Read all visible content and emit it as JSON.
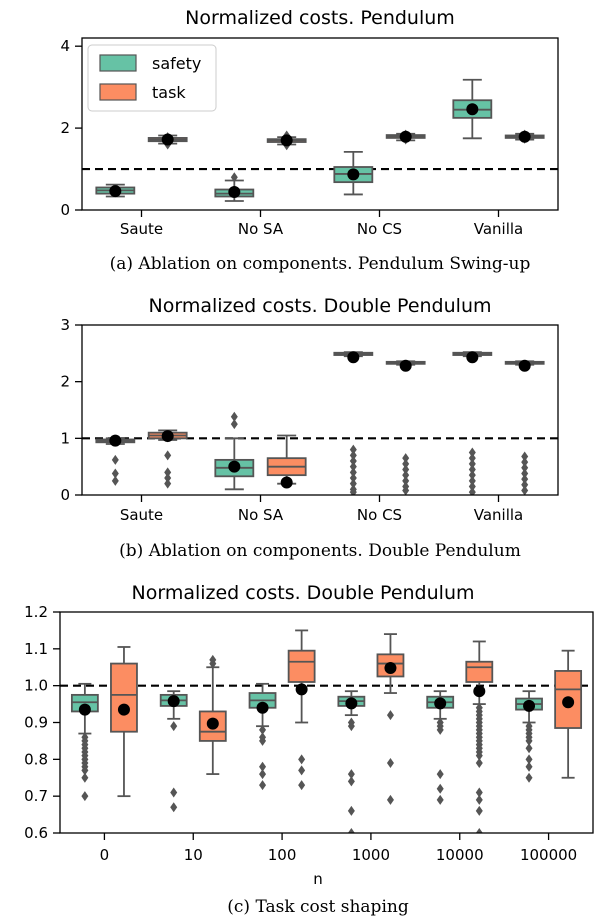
{
  "colors": {
    "safety": "#66c2a5",
    "task": "#fc8d62",
    "line": "#555555",
    "mean": "#000000"
  },
  "chart_data": [
    {
      "type": "box",
      "title": "Normalized costs. Pendulum",
      "caption": "(a) Ablation on components. Pendulum Swing-up",
      "categories": [
        "Saute",
        "No SA",
        "No CS",
        "Vanilla"
      ],
      "ylim": [
        0,
        4.2
      ],
      "yticks": [
        "0",
        "2",
        "4"
      ],
      "reference_line": 1.0,
      "legend": {
        "placement": "top-left",
        "entries": [
          "safety",
          "task"
        ]
      },
      "series": [
        {
          "name": "safety",
          "color": "#66c2a5",
          "boxes": [
            {
              "q1": 0.4,
              "med": 0.48,
              "q3": 0.55,
              "lo": 0.33,
              "hi": 0.62,
              "mean": 0.46,
              "out": []
            },
            {
              "q1": 0.33,
              "med": 0.4,
              "q3": 0.5,
              "lo": 0.22,
              "hi": 0.72,
              "mean": 0.44,
              "out": [
                0.8
              ]
            },
            {
              "q1": 0.68,
              "med": 0.88,
              "q3": 1.05,
              "lo": 0.38,
              "hi": 1.42,
              "mean": 0.87,
              "out": []
            },
            {
              "q1": 2.25,
              "med": 2.45,
              "q3": 2.68,
              "lo": 1.75,
              "hi": 3.18,
              "mean": 2.46,
              "out": []
            }
          ]
        },
        {
          "name": "task",
          "color": "#fc8d62",
          "boxes": [
            {
              "q1": 1.68,
              "med": 1.72,
              "q3": 1.76,
              "lo": 1.62,
              "hi": 1.82,
              "mean": 1.72,
              "out": [
                1.6,
                1.66,
                1.78
              ]
            },
            {
              "q1": 1.66,
              "med": 1.7,
              "q3": 1.73,
              "lo": 1.6,
              "hi": 1.78,
              "mean": 1.7,
              "out": [
                1.58,
                1.82
              ]
            },
            {
              "q1": 1.76,
              "med": 1.8,
              "q3": 1.83,
              "lo": 1.7,
              "hi": 1.86,
              "mean": 1.79,
              "out": [
                1.72,
                1.84
              ]
            },
            {
              "q1": 1.76,
              "med": 1.79,
              "q3": 1.82,
              "lo": 1.72,
              "hi": 1.86,
              "mean": 1.79,
              "out": [
                1.74,
                1.84
              ]
            }
          ]
        }
      ]
    },
    {
      "type": "box",
      "title": "Normalized costs. Double Pendulum",
      "caption": "(b) Ablation on components. Double Pendulum",
      "categories": [
        "Saute",
        "No SA",
        "No CS",
        "Vanilla"
      ],
      "ylim": [
        0,
        3
      ],
      "yticks": [
        "0",
        "1",
        "2",
        "3"
      ],
      "reference_line": 1.0,
      "series": [
        {
          "name": "safety",
          "color": "#66c2a5",
          "boxes": [
            {
              "q1": 0.93,
              "med": 0.96,
              "q3": 0.98,
              "lo": 0.9,
              "hi": 1.0,
              "mean": 0.96,
              "out": [
                0.62,
                0.38,
                0.25
              ]
            },
            {
              "q1": 0.33,
              "med": 0.48,
              "q3": 0.62,
              "lo": 0.1,
              "hi": 1.0,
              "mean": 0.5,
              "out": [
                1.25,
                1.38
              ]
            },
            {
              "q1": 2.47,
              "med": 2.49,
              "q3": 2.51,
              "lo": 2.45,
              "hi": 2.52,
              "mean": 2.43,
              "out": [
                0.8,
                0.7,
                0.6,
                0.5,
                0.4,
                0.3,
                0.2,
                0.1,
                0.05
              ]
            },
            {
              "q1": 2.47,
              "med": 2.49,
              "q3": 2.51,
              "lo": 2.45,
              "hi": 2.52,
              "mean": 2.43,
              "out": [
                0.75,
                0.65,
                0.55,
                0.45,
                0.35,
                0.25,
                0.15,
                0.05
              ]
            }
          ]
        },
        {
          "name": "task",
          "color": "#fc8d62",
          "boxes": [
            {
              "q1": 1.0,
              "med": 1.05,
              "q3": 1.1,
              "lo": 0.97,
              "hi": 1.14,
              "mean": 1.04,
              "out": [
                0.7,
                0.4,
                0.3,
                0.2
              ]
            },
            {
              "q1": 0.35,
              "med": 0.5,
              "q3": 0.65,
              "lo": 0.2,
              "hi": 1.05,
              "mean": 0.22,
              "out": []
            },
            {
              "q1": 2.32,
              "med": 2.33,
              "q3": 2.35,
              "lo": 2.3,
              "hi": 2.36,
              "mean": 2.28,
              "out": [
                0.65,
                0.55,
                0.45,
                0.35,
                0.25,
                0.15,
                0.08
              ]
            },
            {
              "q1": 2.32,
              "med": 2.33,
              "q3": 2.35,
              "lo": 2.3,
              "hi": 2.36,
              "mean": 2.28,
              "out": [
                0.68,
                0.58,
                0.48,
                0.38,
                0.28,
                0.18,
                0.08
              ]
            }
          ]
        }
      ]
    },
    {
      "type": "box",
      "title": "Normalized costs. Double Pendulum",
      "caption": "(c) Task cost shaping",
      "xlabel": "n",
      "categories": [
        "0",
        "10",
        "100",
        "1000",
        "10000",
        "100000"
      ],
      "ylim": [
        0.6,
        1.2
      ],
      "yticks": [
        "0.6",
        "0.7",
        "0.8",
        "0.9",
        "1.0",
        "1.1",
        "1.2"
      ],
      "reference_line": 1.0,
      "series": [
        {
          "name": "safety",
          "color": "#66c2a5",
          "boxes": [
            {
              "q1": 0.93,
              "med": 0.955,
              "q3": 0.975,
              "lo": 0.87,
              "hi": 1.005,
              "mean": 0.935,
              "out": [
                0.86,
                0.85,
                0.84,
                0.83,
                0.82,
                0.81,
                0.8,
                0.79,
                0.78,
                0.77,
                0.75,
                0.7
              ]
            },
            {
              "q1": 0.945,
              "med": 0.96,
              "q3": 0.975,
              "lo": 0.91,
              "hi": 0.985,
              "mean": 0.958,
              "out": [
                0.89,
                0.71,
                0.67
              ]
            },
            {
              "q1": 0.94,
              "med": 0.96,
              "q3": 0.98,
              "lo": 0.89,
              "hi": 1.005,
              "mean": 0.94,
              "out": [
                0.88,
                0.86,
                0.85,
                0.78,
                0.76,
                0.73
              ]
            },
            {
              "q1": 0.945,
              "med": 0.958,
              "q3": 0.97,
              "lo": 0.92,
              "hi": 0.985,
              "mean": 0.952,
              "out": [
                0.9,
                0.89,
                0.76,
                0.74,
                0.66,
                0.6
              ]
            },
            {
              "q1": 0.94,
              "med": 0.955,
              "q3": 0.97,
              "lo": 0.91,
              "hi": 0.985,
              "mean": 0.952,
              "out": [
                0.9,
                0.89,
                0.88,
                0.76,
                0.72,
                0.69
              ]
            },
            {
              "q1": 0.935,
              "med": 0.95,
              "q3": 0.965,
              "lo": 0.9,
              "hi": 0.985,
              "mean": 0.945,
              "out": [
                0.89,
                0.88,
                0.87,
                0.86,
                0.85,
                0.83,
                0.8,
                0.78,
                0.75
              ]
            }
          ]
        },
        {
          "name": "task",
          "color": "#fc8d62",
          "boxes": [
            {
              "q1": 0.875,
              "med": 0.975,
              "q3": 1.06,
              "lo": 0.7,
              "hi": 1.105,
              "mean": 0.935,
              "out": []
            },
            {
              "q1": 0.85,
              "med": 0.875,
              "q3": 0.93,
              "lo": 0.76,
              "hi": 1.05,
              "mean": 0.897,
              "out": [
                1.07,
                1.06
              ]
            },
            {
              "q1": 1.01,
              "med": 1.065,
              "q3": 1.095,
              "lo": 0.9,
              "hi": 1.15,
              "mean": 0.99,
              "out": [
                0.8,
                0.77,
                0.73
              ]
            },
            {
              "q1": 1.025,
              "med": 1.06,
              "q3": 1.085,
              "lo": 0.98,
              "hi": 1.14,
              "mean": 1.048,
              "out": [
                0.92,
                0.79,
                0.69
              ]
            },
            {
              "q1": 1.01,
              "med": 1.05,
              "q3": 1.065,
              "lo": 0.95,
              "hi": 1.12,
              "mean": 0.985,
              "out": [
                0.94,
                0.93,
                0.92,
                0.91,
                0.9,
                0.89,
                0.88,
                0.87,
                0.86,
                0.85,
                0.84,
                0.83,
                0.82,
                0.81,
                0.79,
                0.71,
                0.69,
                0.66,
                0.6
              ]
            },
            {
              "q1": 0.885,
              "med": 0.99,
              "q3": 1.04,
              "lo": 0.75,
              "hi": 1.095,
              "mean": 0.955,
              "out": []
            }
          ]
        }
      ]
    }
  ]
}
